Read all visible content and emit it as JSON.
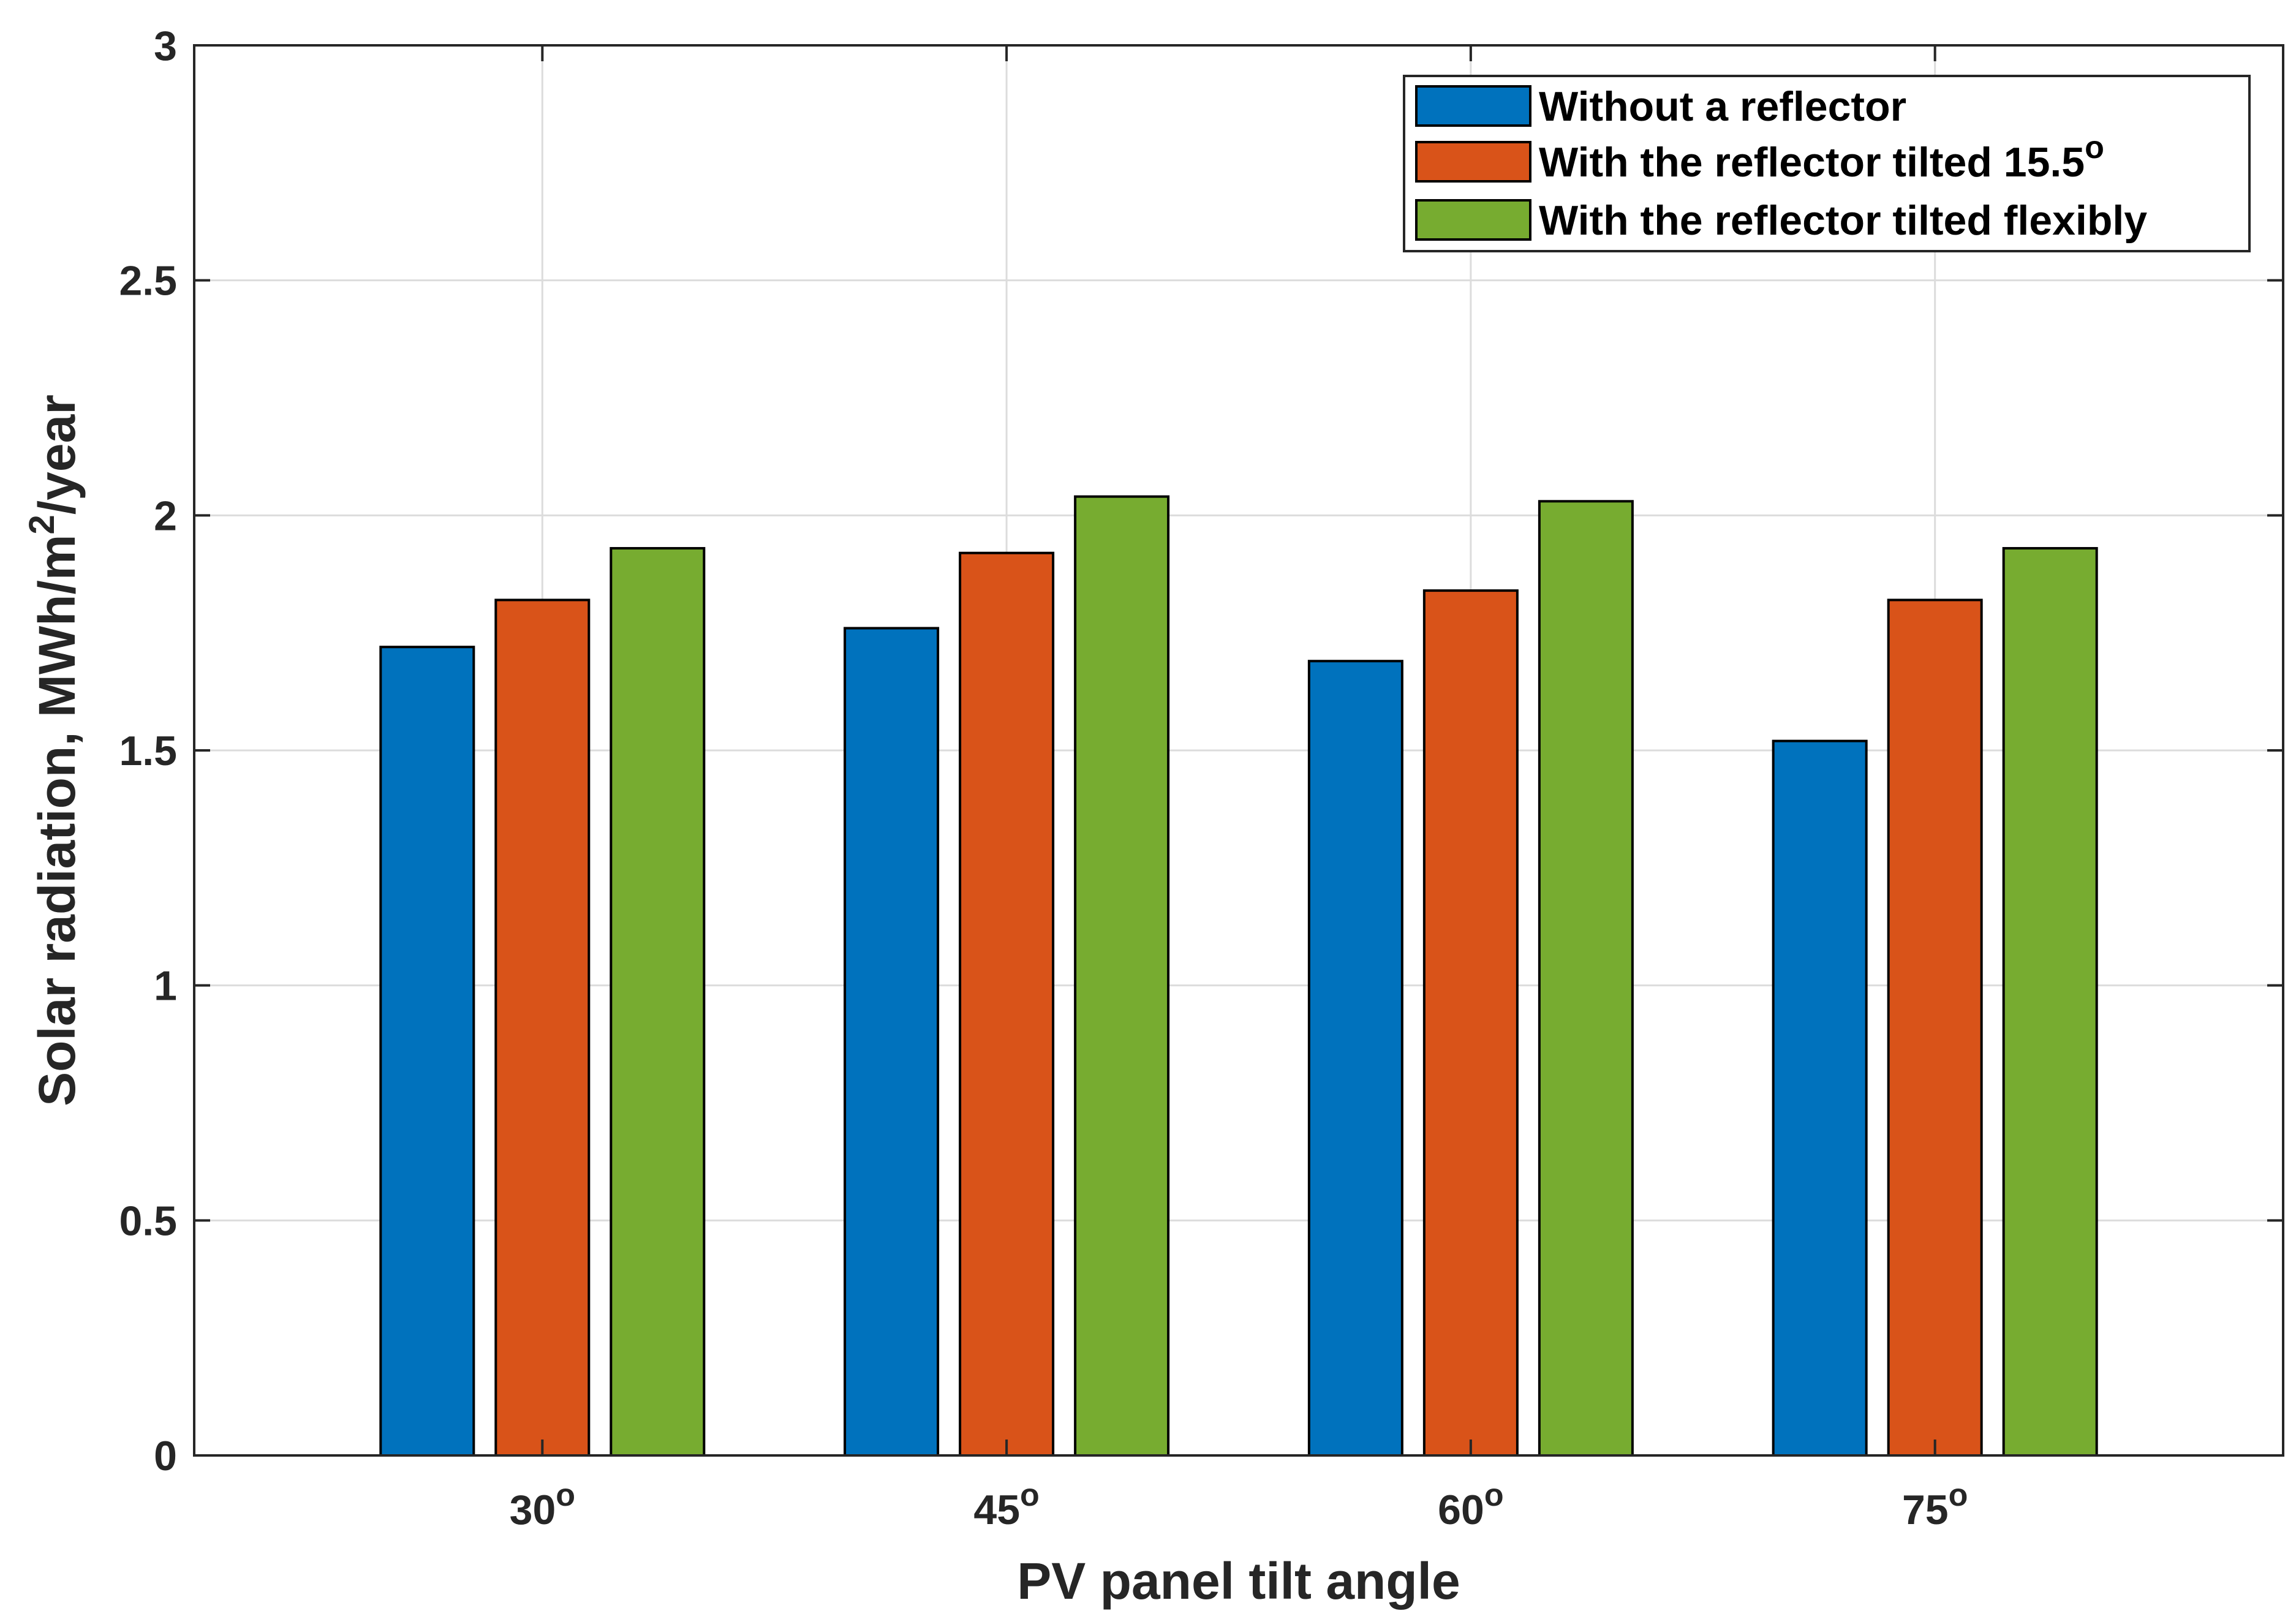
{
  "chart_data": {
    "type": "bar",
    "categories": [
      "30°",
      "45°",
      "60°",
      "75°"
    ],
    "category_degree_notation": [
      "30",
      "45",
      "60",
      "75"
    ],
    "series": [
      {
        "name": "Without a reflector",
        "color": "#0072BD",
        "values": [
          1.72,
          1.76,
          1.69,
          1.52
        ]
      },
      {
        "name": "With the reflector tilted 15.5°",
        "color": "#D95319",
        "values": [
          1.82,
          1.92,
          1.84,
          1.82
        ]
      },
      {
        "name": "With the reflector tilted flexibly",
        "color": "#77AC30",
        "values": [
          1.93,
          2.04,
          2.03,
          1.93
        ]
      }
    ],
    "legend_text": [
      {
        "main": "Without a reflector",
        "sup": ""
      },
      {
        "main": "With the reflector tilted 15.5",
        "sup": "o"
      },
      {
        "main": "With the reflector tilted flexibly",
        "sup": ""
      }
    ],
    "xlabel": "PV panel tilt angle",
    "ylabel": {
      "prefix": "Solar radiation, MWh/m",
      "sup": "2",
      "suffix": "/year"
    },
    "ylim": [
      0,
      3
    ],
    "yticks": [
      0,
      0.5,
      1,
      1.5,
      2,
      2.5,
      3
    ],
    "ytick_labels": [
      "0",
      "0.5",
      "1",
      "1.5",
      "2",
      "2.5",
      "3"
    ],
    "degree_symbol": "o",
    "grid": true,
    "legend_position": "top-right"
  }
}
